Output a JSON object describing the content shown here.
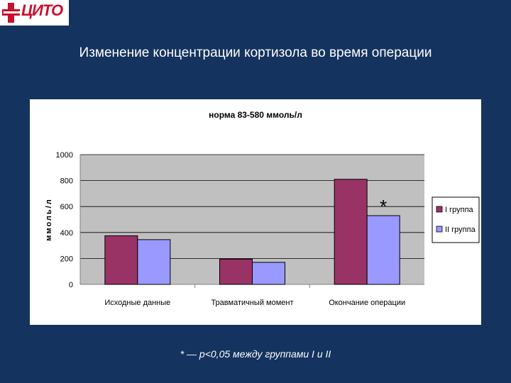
{
  "logo": {
    "text": "ЦИТО",
    "color": "#c8102e"
  },
  "slide": {
    "title": "Изменение концентрации кортизола во время операции",
    "footnote": "* — p<0,05 между группами I и II"
  },
  "colors": {
    "background": "#14335e",
    "plot_area": "#c0c0c0",
    "series1": "#993366",
    "series2": "#9999ff"
  },
  "chart_data": {
    "type": "bar",
    "title": "норма 83-580 ммоль/л",
    "xlabel": "",
    "ylabel": "ммоль/л",
    "ylim": [
      0,
      1000
    ],
    "yticks": [
      "0",
      "200",
      "400",
      "600",
      "800",
      "1000"
    ],
    "categories": [
      "Исходные данные",
      "Травматичный момент",
      "Окончание операции"
    ],
    "series": [
      {
        "name": "I группа",
        "values": [
          375,
          195,
          810
        ]
      },
      {
        "name": "II группа",
        "values": [
          345,
          170,
          530
        ]
      }
    ],
    "annotations": [
      {
        "text": "*",
        "category": 2
      }
    ],
    "grid": true,
    "legend": "right"
  }
}
